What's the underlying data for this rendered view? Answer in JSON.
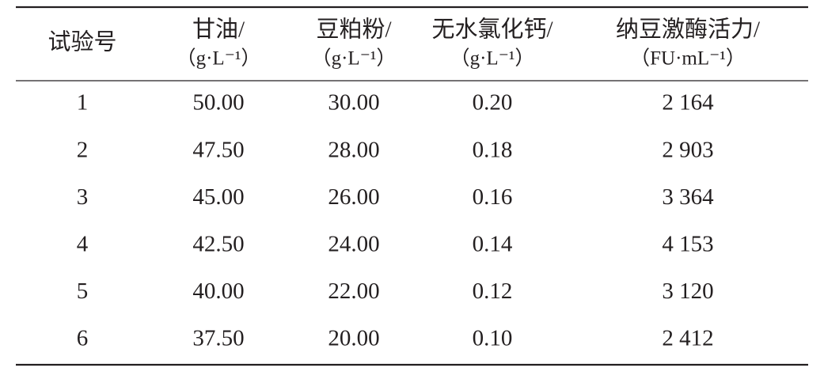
{
  "table": {
    "header": [
      [
        "试验号"
      ],
      [
        "甘油/",
        "（g·L⁻¹）"
      ],
      [
        "豆粕粉/",
        "（g·L⁻¹）"
      ],
      [
        "无水氯化钙/",
        "（g·L⁻¹）"
      ],
      [
        "纳豆激酶活力/",
        "（FU·mL⁻¹）"
      ]
    ],
    "rows": [
      [
        "1",
        "50.00",
        "30.00",
        "0.20",
        "2 164"
      ],
      [
        "2",
        "47.50",
        "28.00",
        "0.18",
        "2 903"
      ],
      [
        "3",
        "45.00",
        "26.00",
        "0.16",
        "3 364"
      ],
      [
        "4",
        "42.50",
        "24.00",
        "0.14",
        "4 153"
      ],
      [
        "5",
        "40.00",
        "22.00",
        "0.12",
        "3 120"
      ],
      [
        "6",
        "37.50",
        "20.00",
        "0.10",
        "2 412"
      ]
    ]
  }
}
